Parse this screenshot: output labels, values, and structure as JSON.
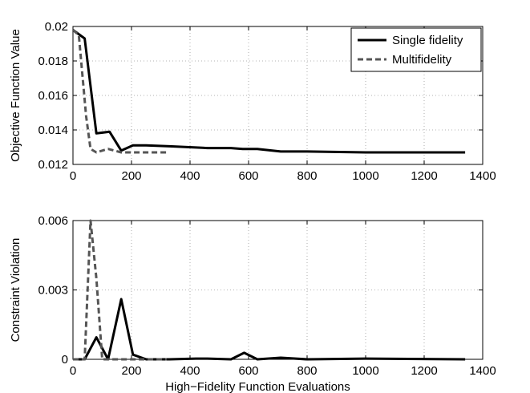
{
  "chart_data": [
    {
      "type": "line",
      "xlabel": "",
      "ylabel": "Objective Function Value",
      "xlim": [
        0,
        1400
      ],
      "ylim": [
        0.012,
        0.02
      ],
      "xticks": [
        "0",
        "200",
        "400",
        "600",
        "800",
        "1000",
        "1200",
        "1400"
      ],
      "yticks": [
        "0.012",
        "0.014",
        "0.016",
        "0.018",
        "0.02"
      ],
      "grid": true,
      "legend": "top-right",
      "series": [
        {
          "name": "Single fidelity",
          "style": "solid",
          "color": "#000000",
          "x": [
            0,
            40,
            80,
            125,
            165,
            205,
            250,
            330,
            420,
            460,
            540,
            580,
            630,
            710,
            800,
            1000,
            1340
          ],
          "y": [
            0.0198,
            0.0193,
            0.0138,
            0.0139,
            0.0128,
            0.0131,
            0.0131,
            0.01305,
            0.01298,
            0.01295,
            0.01295,
            0.0129,
            0.0129,
            0.01275,
            0.01275,
            0.0127,
            0.0127
          ]
        },
        {
          "name": "Multifidelity",
          "style": "dashed",
          "color": "#555555",
          "x": [
            0,
            20,
            45,
            60,
            80,
            120,
            165,
            320
          ],
          "y": [
            0.0198,
            0.0195,
            0.0148,
            0.0129,
            0.0127,
            0.0129,
            0.0127,
            0.0127
          ]
        }
      ]
    },
    {
      "type": "line",
      "xlabel": "High−Fidelity Function Evaluations",
      "ylabel": "Constraint Violation",
      "xlim": [
        0,
        1400
      ],
      "ylim": [
        0,
        0.006
      ],
      "xticks": [
        "0",
        "200",
        "400",
        "600",
        "800",
        "1000",
        "1200",
        "1400"
      ],
      "yticks": [
        "0",
        "0.003",
        "0.006"
      ],
      "grid": true,
      "series": [
        {
          "name": "Single fidelity",
          "style": "solid",
          "color": "#000000",
          "x": [
            0,
            40,
            80,
            120,
            165,
            205,
            250,
            330,
            420,
            460,
            540,
            585,
            630,
            710,
            800,
            1000,
            1340
          ],
          "y": [
            0,
            0,
            0.00095,
            0,
            0.0026,
            0.0002,
            0,
            0,
            3e-05,
            3e-05,
            0,
            0.00028,
            0,
            7e-05,
            0,
            3e-05,
            0
          ]
        },
        {
          "name": "Multifidelity",
          "style": "dashed",
          "color": "#555555",
          "x": [
            0,
            40,
            60,
            80,
            100,
            120,
            160,
            320
          ],
          "y": [
            0,
            0,
            0.006,
            0.0035,
            0,
            0,
            0,
            0
          ]
        }
      ]
    }
  ]
}
